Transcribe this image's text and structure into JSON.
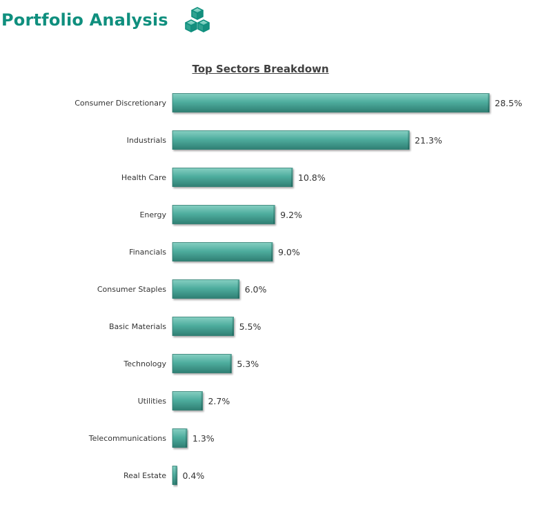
{
  "header": {
    "title": "Portfolio Analysis",
    "logo_icon": "stacked-cubes-icon"
  },
  "colors": {
    "brand": "#0f8f7e",
    "bar_top": "#86cfc2",
    "bar_mid": "#4fae9f",
    "bar_bottom": "#2f7f73",
    "text": "#333333"
  },
  "chart_data": {
    "type": "bar",
    "orientation": "horizontal",
    "title": "Top Sectors Breakdown",
    "xlabel": "",
    "ylabel": "",
    "value_format": "percent-1dp",
    "grid": false,
    "legend": "none",
    "xlim": [
      0,
      28.5
    ],
    "categories": [
      "Consumer Discretionary",
      "Industrials",
      "Health Care",
      "Energy",
      "Financials",
      "Consumer Staples",
      "Basic Materials",
      "Technology",
      "Utilities",
      "Telecommunications",
      "Real Estate"
    ],
    "values": [
      28.5,
      21.3,
      10.8,
      9.2,
      9.0,
      6.0,
      5.5,
      5.3,
      2.7,
      1.3,
      0.4
    ],
    "value_labels": [
      "28.5%",
      "21.3%",
      "10.8%",
      "9.2%",
      "9.0%",
      "6.0%",
      "5.5%",
      "5.3%",
      "2.7%",
      "1.3%",
      "0.4%"
    ]
  }
}
